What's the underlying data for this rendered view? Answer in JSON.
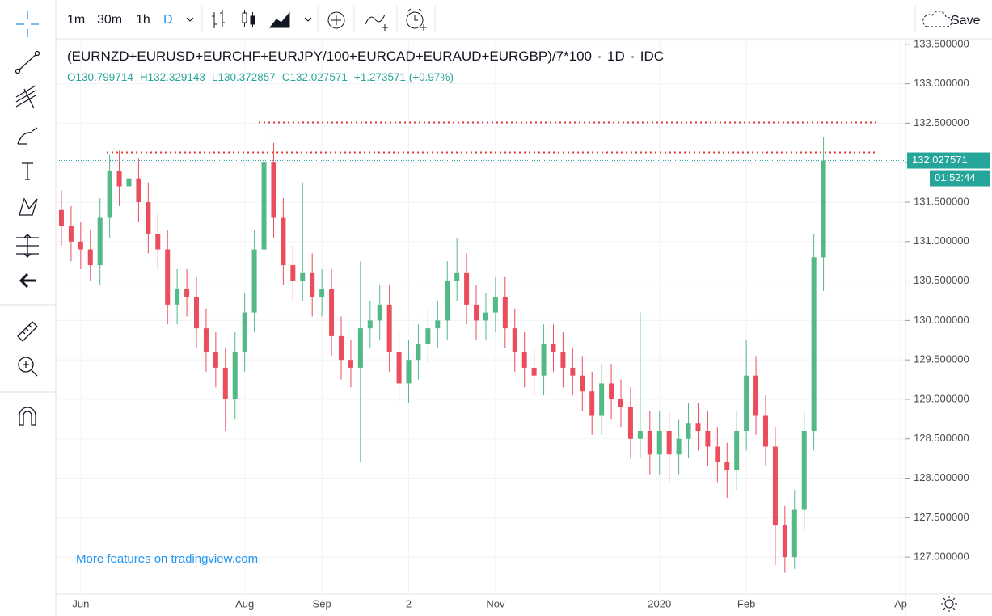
{
  "ui": {
    "intervals": [
      "1m",
      "30m",
      "1h",
      "D"
    ],
    "save": "Save",
    "watermark": "More features on tradingview.com"
  },
  "chart_data": {
    "type": "candlestick",
    "title": "(EURNZD+EURUSD+EURCHF+EURJPY/100+EURCAD+EURAUD+EURGBP)/7*100",
    "resolution": "1D",
    "source": "IDC",
    "ohlc_labels": [
      "O",
      "H",
      "L",
      "C"
    ],
    "change": "+1.273571 (+0.97%)",
    "countdown": "01:52:44",
    "up_color": "#53b987",
    "down_color": "#eb4d5c",
    "categories": [
      null,
      null,
      "Jun",
      null,
      null,
      null,
      null,
      null,
      null,
      null,
      null,
      null,
      null,
      null,
      null,
      null,
      null,
      null,
      null,
      "Aug",
      null,
      null,
      null,
      null,
      null,
      null,
      null,
      "Sep",
      null,
      null,
      null,
      null,
      null,
      null,
      null,
      null,
      "2",
      null,
      null,
      null,
      null,
      null,
      null,
      null,
      null,
      "Nov",
      null,
      null,
      null,
      null,
      null,
      null,
      null,
      null,
      null,
      null,
      null,
      null,
      null,
      null,
      null,
      null,
      "2020",
      null,
      null,
      null,
      null,
      null,
      null,
      null,
      null,
      "Feb",
      null,
      null,
      null,
      null,
      null,
      null,
      null,
      null,
      null,
      null,
      null,
      null,
      null,
      null,
      null,
      "Ap"
    ],
    "open": [
      131.4,
      131.2,
      131.0,
      130.9,
      130.7,
      131.3,
      131.9,
      131.7,
      131.8,
      131.5,
      131.1,
      130.9,
      130.2,
      130.4,
      130.3,
      129.9,
      129.6,
      129.4,
      129.0,
      129.6,
      130.1,
      130.9,
      132.0,
      131.3,
      130.7,
      130.5,
      130.6,
      130.3,
      130.4,
      129.8,
      129.5,
      129.4,
      129.9,
      130.0,
      130.2,
      129.6,
      129.2,
      129.5,
      129.7,
      129.9,
      130.0,
      130.5,
      130.6,
      130.2,
      130.0,
      130.1,
      130.3,
      129.9,
      129.6,
      129.4,
      129.3,
      129.7,
      129.6,
      129.4,
      129.3,
      129.1,
      128.8,
      129.2,
      129.0,
      128.9,
      128.5,
      128.6,
      128.3,
      128.6,
      128.3,
      128.5,
      128.7,
      128.6,
      128.4,
      128.2,
      128.1,
      128.6,
      129.3,
      128.8,
      128.4,
      127.4,
      127.0,
      127.6,
      128.6,
      130.799714,
      null,
      null,
      null,
      null,
      null,
      null,
      null,
      null
    ],
    "high": [
      131.65,
      131.45,
      131.25,
      131.15,
      131.55,
      132.1,
      132.15,
      132.1,
      132.05,
      131.75,
      131.35,
      131.15,
      130.65,
      130.65,
      130.55,
      130.15,
      129.85,
      129.65,
      129.85,
      130.35,
      131.15,
      132.48,
      132.25,
      131.55,
      130.95,
      131.75,
      130.85,
      130.65,
      130.65,
      130.05,
      129.75,
      130.75,
      130.25,
      130.45,
      130.45,
      129.85,
      129.75,
      129.95,
      130.15,
      130.25,
      130.75,
      131.05,
      130.85,
      130.45,
      130.35,
      130.55,
      130.55,
      130.15,
      129.85,
      129.65,
      129.95,
      129.95,
      129.85,
      129.65,
      129.55,
      129.35,
      129.45,
      129.45,
      129.25,
      129.15,
      130.1,
      128.85,
      128.85,
      128.85,
      128.75,
      128.95,
      128.95,
      128.85,
      128.65,
      128.45,
      128.85,
      129.75,
      129.55,
      129.05,
      128.65,
      127.65,
      127.85,
      128.85,
      131.1,
      132.329143,
      null,
      null,
      null,
      null,
      null,
      null,
      null,
      null
    ],
    "low": [
      130.95,
      130.75,
      130.65,
      130.5,
      130.45,
      131.05,
      131.45,
      131.45,
      131.25,
      130.85,
      130.65,
      129.95,
      129.95,
      130.05,
      129.65,
      129.35,
      129.15,
      128.6,
      128.75,
      129.35,
      129.85,
      130.65,
      131.05,
      130.45,
      130.25,
      130.25,
      130.05,
      130.05,
      129.55,
      129.25,
      129.15,
      128.2,
      129.65,
      129.75,
      129.35,
      128.95,
      128.95,
      129.25,
      129.45,
      129.65,
      129.75,
      130.25,
      129.95,
      129.75,
      129.75,
      129.85,
      129.65,
      129.35,
      129.15,
      129.05,
      129.05,
      129.35,
      129.15,
      129.05,
      128.85,
      128.55,
      128.55,
      128.75,
      128.65,
      128.25,
      128.25,
      128.05,
      128.05,
      127.95,
      128.05,
      128.25,
      128.35,
      128.15,
      127.95,
      127.75,
      127.85,
      128.35,
      128.55,
      128.15,
      126.9,
      126.8,
      126.85,
      127.35,
      128.35,
      130.372857,
      null,
      null,
      null,
      null,
      null,
      null,
      null,
      null
    ],
    "close": [
      131.2,
      131.0,
      130.9,
      130.7,
      131.3,
      131.9,
      131.7,
      131.8,
      131.5,
      131.1,
      130.9,
      130.2,
      130.4,
      130.3,
      129.9,
      129.6,
      129.4,
      129.0,
      129.6,
      130.1,
      130.9,
      132.0,
      131.3,
      130.7,
      130.5,
      130.6,
      130.3,
      130.4,
      129.8,
      129.5,
      129.4,
      129.9,
      130.0,
      130.2,
      129.6,
      129.2,
      129.5,
      129.7,
      129.9,
      130.0,
      130.5,
      130.6,
      130.2,
      130.0,
      130.1,
      130.3,
      129.9,
      129.6,
      129.4,
      129.3,
      129.7,
      129.6,
      129.4,
      129.3,
      129.1,
      128.8,
      129.2,
      129.0,
      128.9,
      128.5,
      128.6,
      128.3,
      128.6,
      128.3,
      128.5,
      128.7,
      128.6,
      128.4,
      128.2,
      128.1,
      128.6,
      129.3,
      128.8,
      128.4,
      127.4,
      127.0,
      127.6,
      128.6,
      130.8,
      132.027571,
      null,
      null,
      null,
      null,
      null,
      null,
      null,
      null
    ],
    "levels": [
      {
        "value": 132.13,
        "color": "#e53935"
      },
      {
        "value": 132.51,
        "color": "#e53935"
      }
    ],
    "ylim": [
      126.53,
      133.57
    ],
    "yticks": [
      {
        "value": 127,
        "label": "127.000000"
      },
      {
        "value": 127.5,
        "label": "127.500000"
      },
      {
        "value": 128,
        "label": "128.000000"
      },
      {
        "value": 128.5,
        "label": "128.500000"
      },
      {
        "value": 129,
        "label": "129.000000"
      },
      {
        "value": 129.5,
        "label": "129.500000"
      },
      {
        "value": 130,
        "label": "130.000000"
      },
      {
        "value": 130.5,
        "label": "130.500000"
      },
      {
        "value": 131,
        "label": "131.000000"
      },
      {
        "value": 131.5,
        "label": "131.500000"
      },
      {
        "value": 132,
        "label": "132.000000"
      },
      {
        "value": 132.5,
        "label": "132.500000"
      },
      {
        "value": 133,
        "label": "133.000000"
      },
      {
        "value": 133.5,
        "label": "133.500000"
      }
    ],
    "grid": true
  }
}
